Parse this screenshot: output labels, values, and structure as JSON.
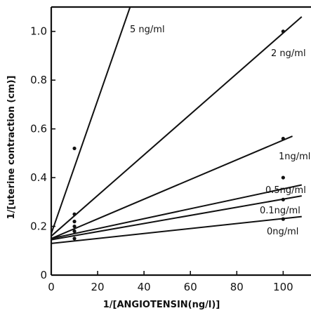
{
  "chart_data": {
    "type": "line",
    "xlabel": "1/[ANGIOTENSIN(ng/l)]",
    "ylabel": "1/[uterine contraction (cm)]",
    "xlim": [
      0,
      112
    ],
    "ylim": [
      0,
      1.1
    ],
    "x_ticks": [
      "0",
      "20",
      "40",
      "60",
      "80",
      "100"
    ],
    "y_ticks": [
      "0",
      "0.2",
      "0.4",
      "0.6",
      "0.8",
      "1.0"
    ],
    "grid": false,
    "series": [
      {
        "name": "5 ng/ml",
        "points": [
          [
            10,
            0.52
          ]
        ],
        "line": [
          [
            0,
            0.17
          ],
          [
            34,
            1.1
          ]
        ]
      },
      {
        "name": "2 ng/ml",
        "points": [
          [
            10,
            0.25
          ],
          [
            100,
            1.0
          ]
        ],
        "line": [
          [
            0,
            0.16
          ],
          [
            108,
            1.06
          ]
        ]
      },
      {
        "name": "1ng/ml",
        "points": [
          [
            10,
            0.22
          ],
          [
            100,
            0.56
          ]
        ],
        "line": [
          [
            0,
            0.15
          ],
          [
            104,
            0.57
          ]
        ]
      },
      {
        "name": "0.5ng/ml",
        "points": [
          [
            10,
            0.2
          ],
          [
            100,
            0.4
          ]
        ],
        "line": [
          [
            0,
            0.15
          ],
          [
            108,
            0.37
          ]
        ]
      },
      {
        "name": "0.1ng/ml",
        "points": [
          [
            10,
            0.18
          ],
          [
            100,
            0.31
          ]
        ],
        "line": [
          [
            0,
            0.145
          ],
          [
            108,
            0.325
          ]
        ]
      },
      {
        "name": "0ng/ml",
        "points": [
          [
            10,
            0.15
          ],
          [
            100,
            0.23
          ]
        ],
        "line": [
          [
            0,
            0.13
          ],
          [
            108,
            0.24
          ]
        ]
      }
    ]
  }
}
